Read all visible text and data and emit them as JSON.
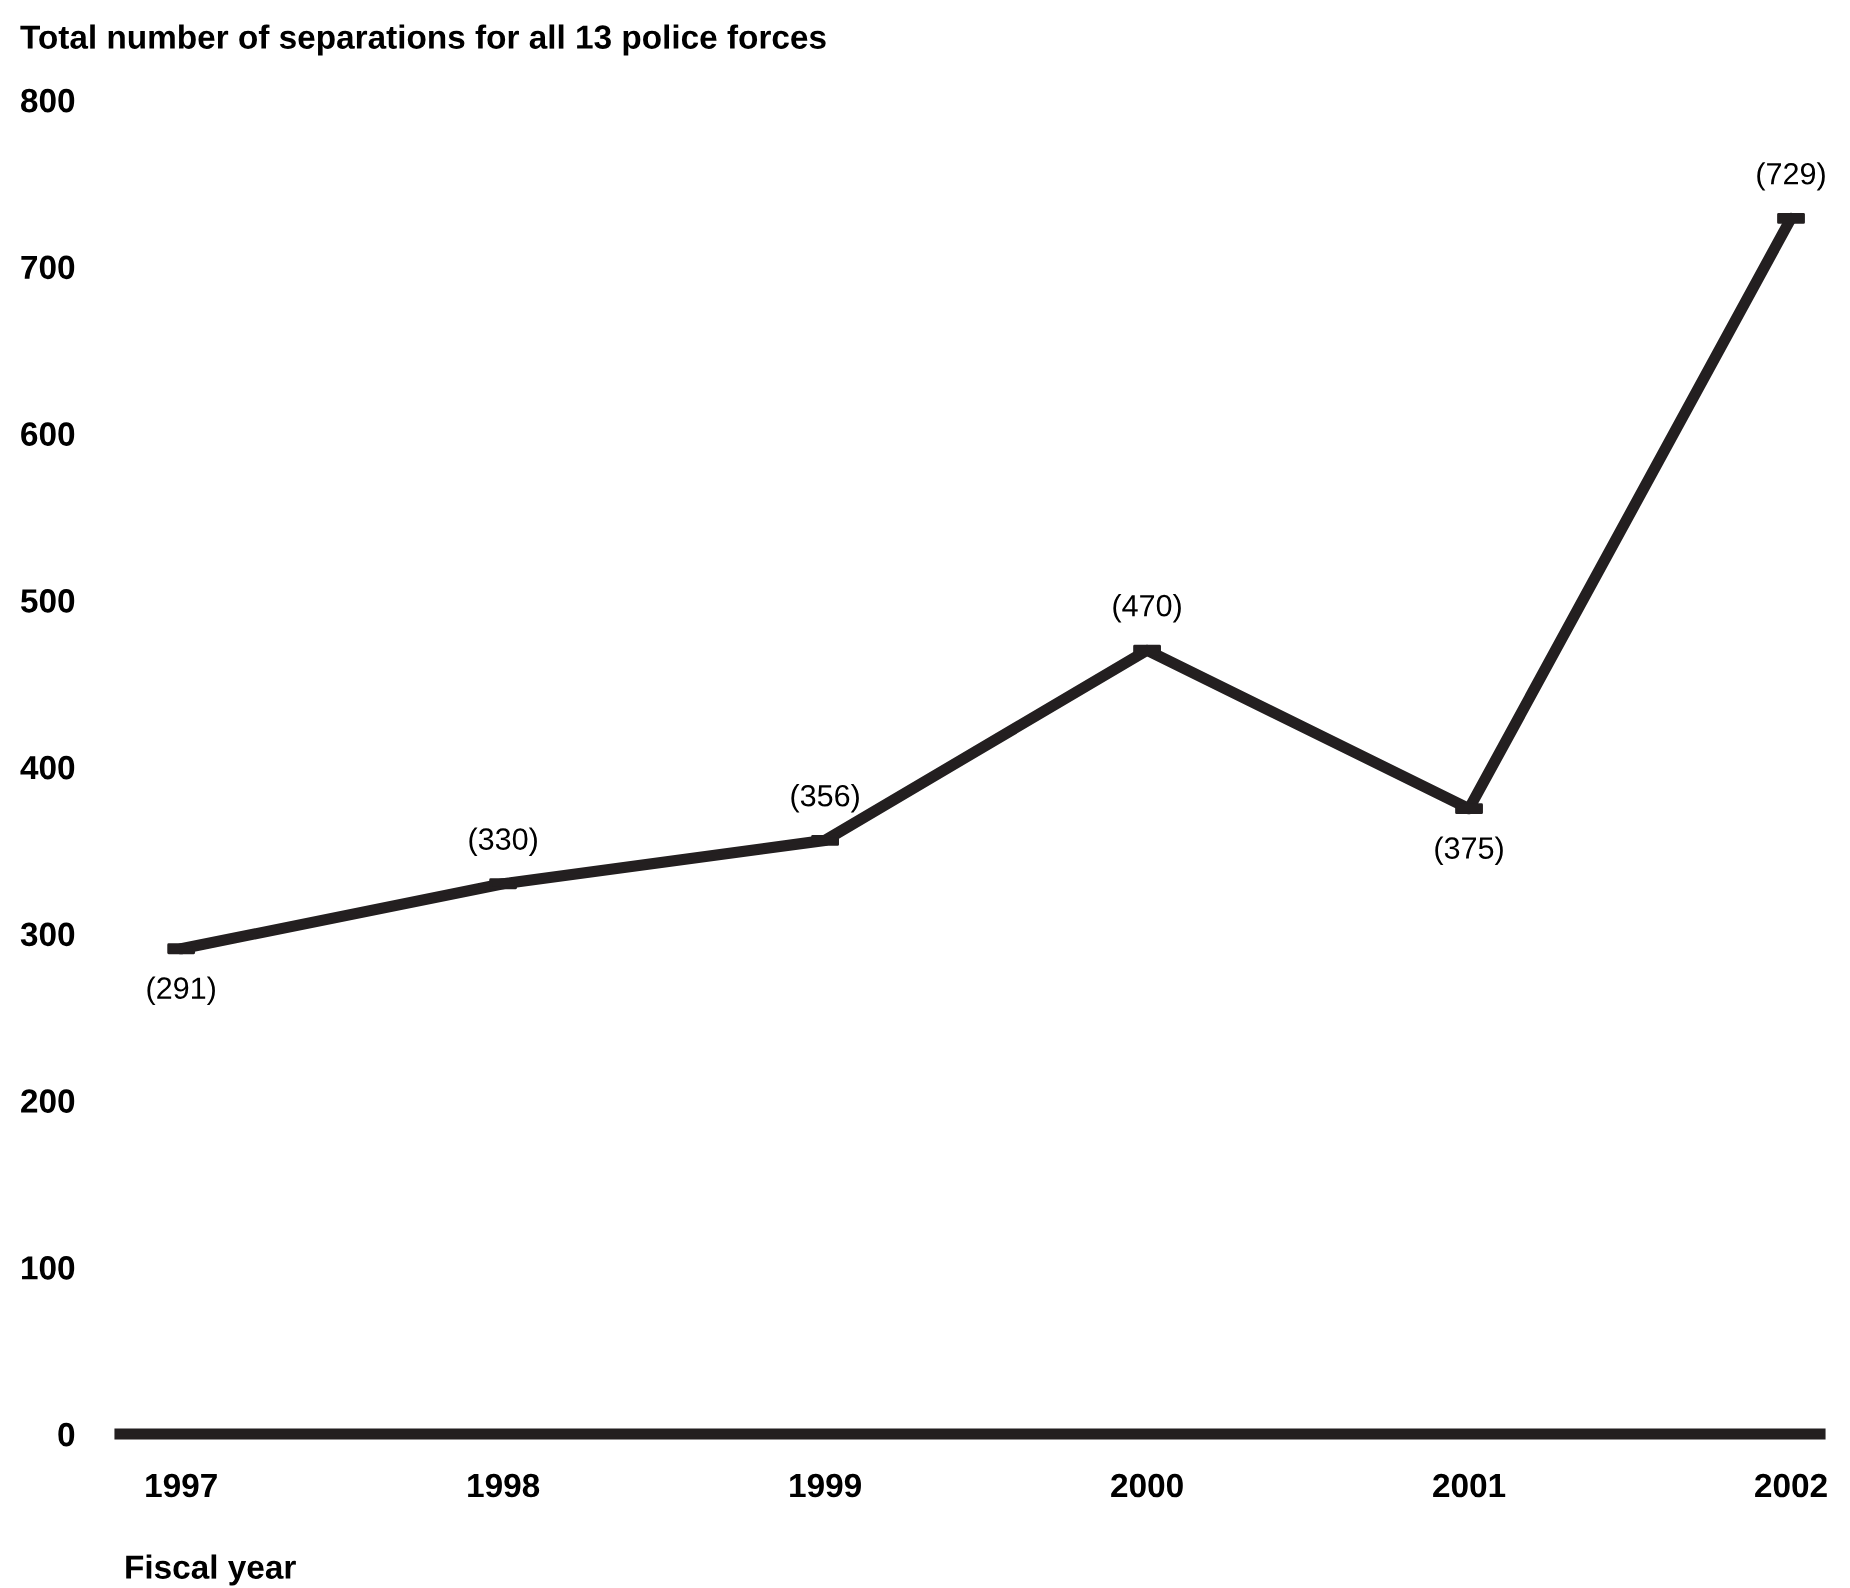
{
  "chart_data": {
    "type": "line",
    "title": "Total number of separations for all 13 police forces",
    "xlabel": "Fiscal year",
    "categories": [
      "1997",
      "1998",
      "1999",
      "2000",
      "2001",
      "2002"
    ],
    "series": [
      {
        "color": "#231f20",
        "values": [
          291,
          330,
          356,
          470,
          375,
          729
        ],
        "value_labels": [
          "(291)",
          "(330)",
          "(356)",
          "(470)",
          "(375)",
          "(729)"
        ]
      }
    ],
    "ylim": [
      0,
      800
    ],
    "yticks": [
      0,
      100,
      200,
      300,
      400,
      500,
      600,
      700,
      800
    ],
    "grid": false,
    "marker": "square",
    "line_style": "solid"
  }
}
